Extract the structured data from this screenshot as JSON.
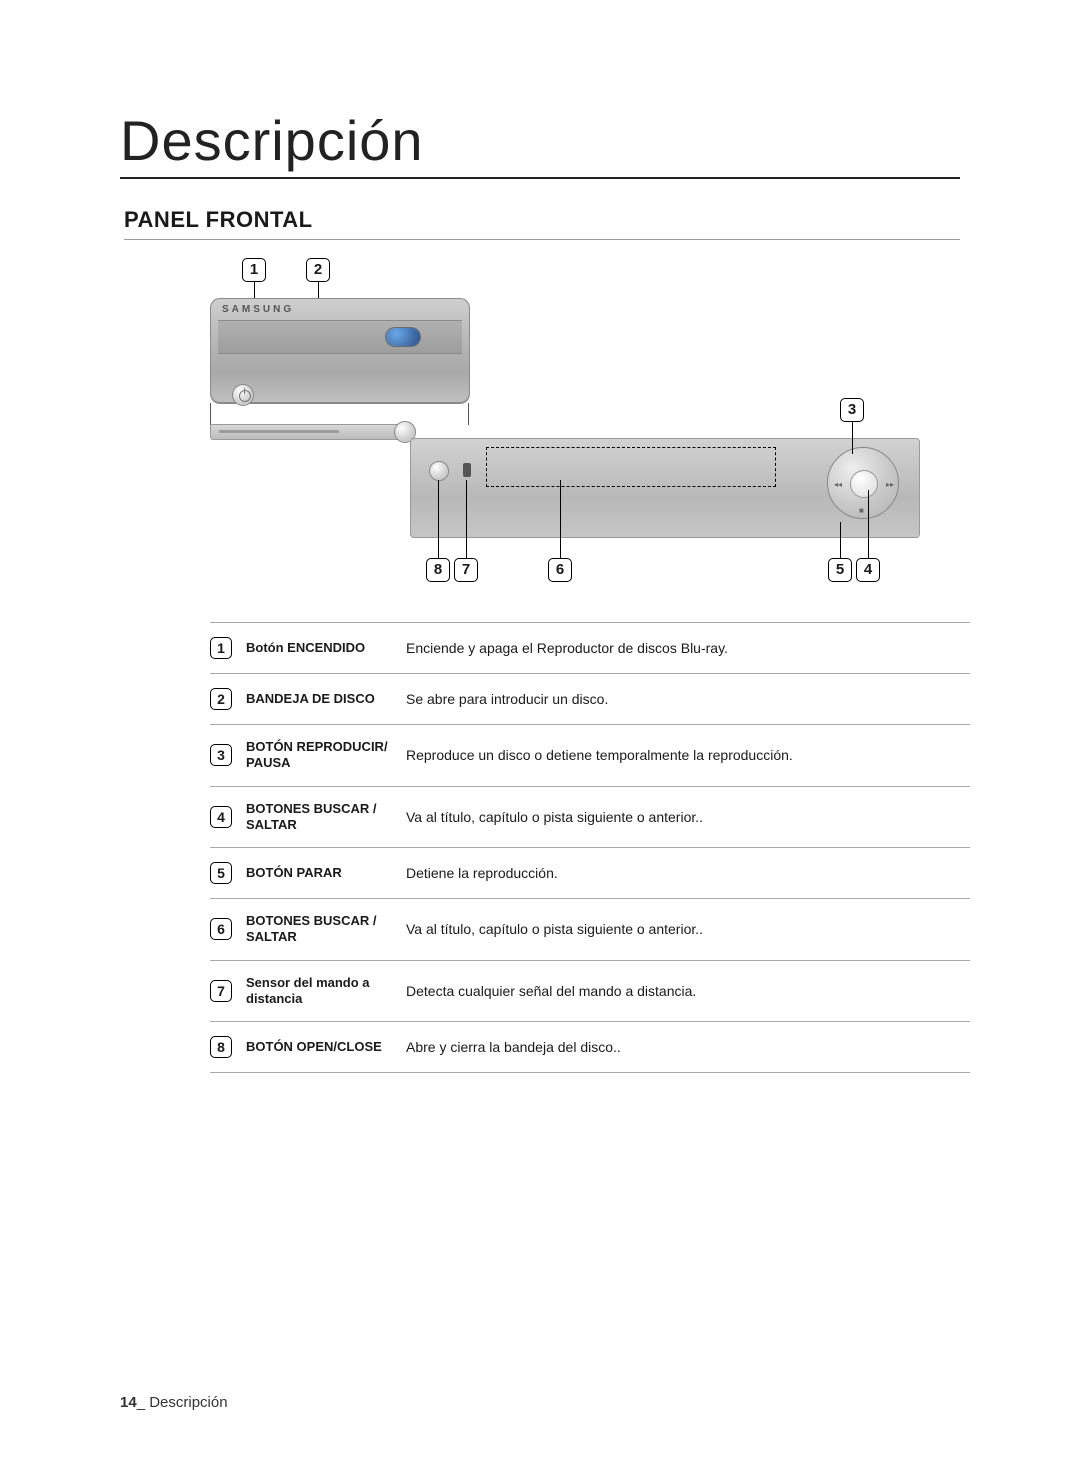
{
  "page": {
    "title": "Descripción",
    "subtitle": "PANEL FRONTAL",
    "footer_page": "14",
    "footer_sep": "_ ",
    "footer_label": "Descripción"
  },
  "diagram": {
    "brand": "SAMSUNG",
    "callouts": {
      "c1": "1",
      "c2": "2",
      "c3": "3",
      "c4": "4",
      "c5": "5",
      "c6": "6",
      "c7": "7",
      "c8": "8"
    },
    "colors": {
      "panel_light": "#d2d2d2",
      "panel_dark": "#b8b8b8",
      "border": "#9a9a9a",
      "bluray_outer": "#2a4f86",
      "bluray_inner": "#6aa7e8"
    }
  },
  "rows": [
    {
      "num": "1",
      "name": "Botón ENCENDIDO",
      "desc": "Enciende y apaga el Reproductor de discos Blu-ray."
    },
    {
      "num": "2",
      "name": "BANDEJA DE DISCO",
      "desc": "Se abre para introducir un disco."
    },
    {
      "num": "3",
      "name": "BOTÓN REPRODUCIR/\nPAUSA",
      "desc": "Reproduce un disco o detiene temporalmente la reproducción."
    },
    {
      "num": "4",
      "name": "BOTONES BUSCAR /\nSALTAR",
      "desc": "Va al título, capítulo o pista siguiente o anterior.."
    },
    {
      "num": "5",
      "name": "BOTÓN PARAR",
      "desc": "Detiene la reproducción."
    },
    {
      "num": "6",
      "name": "BOTONES BUSCAR /\nSALTAR",
      "desc": "Va al título, capítulo o pista siguiente o anterior.."
    },
    {
      "num": "7",
      "name": "Sensor del mando a\ndistancia",
      "desc": "Detecta cualquier señal del mando a distancia."
    },
    {
      "num": "8",
      "name": "BOTÓN OPEN/CLOSE",
      "desc": "Abre y cierra la bandeja del disco.."
    }
  ]
}
